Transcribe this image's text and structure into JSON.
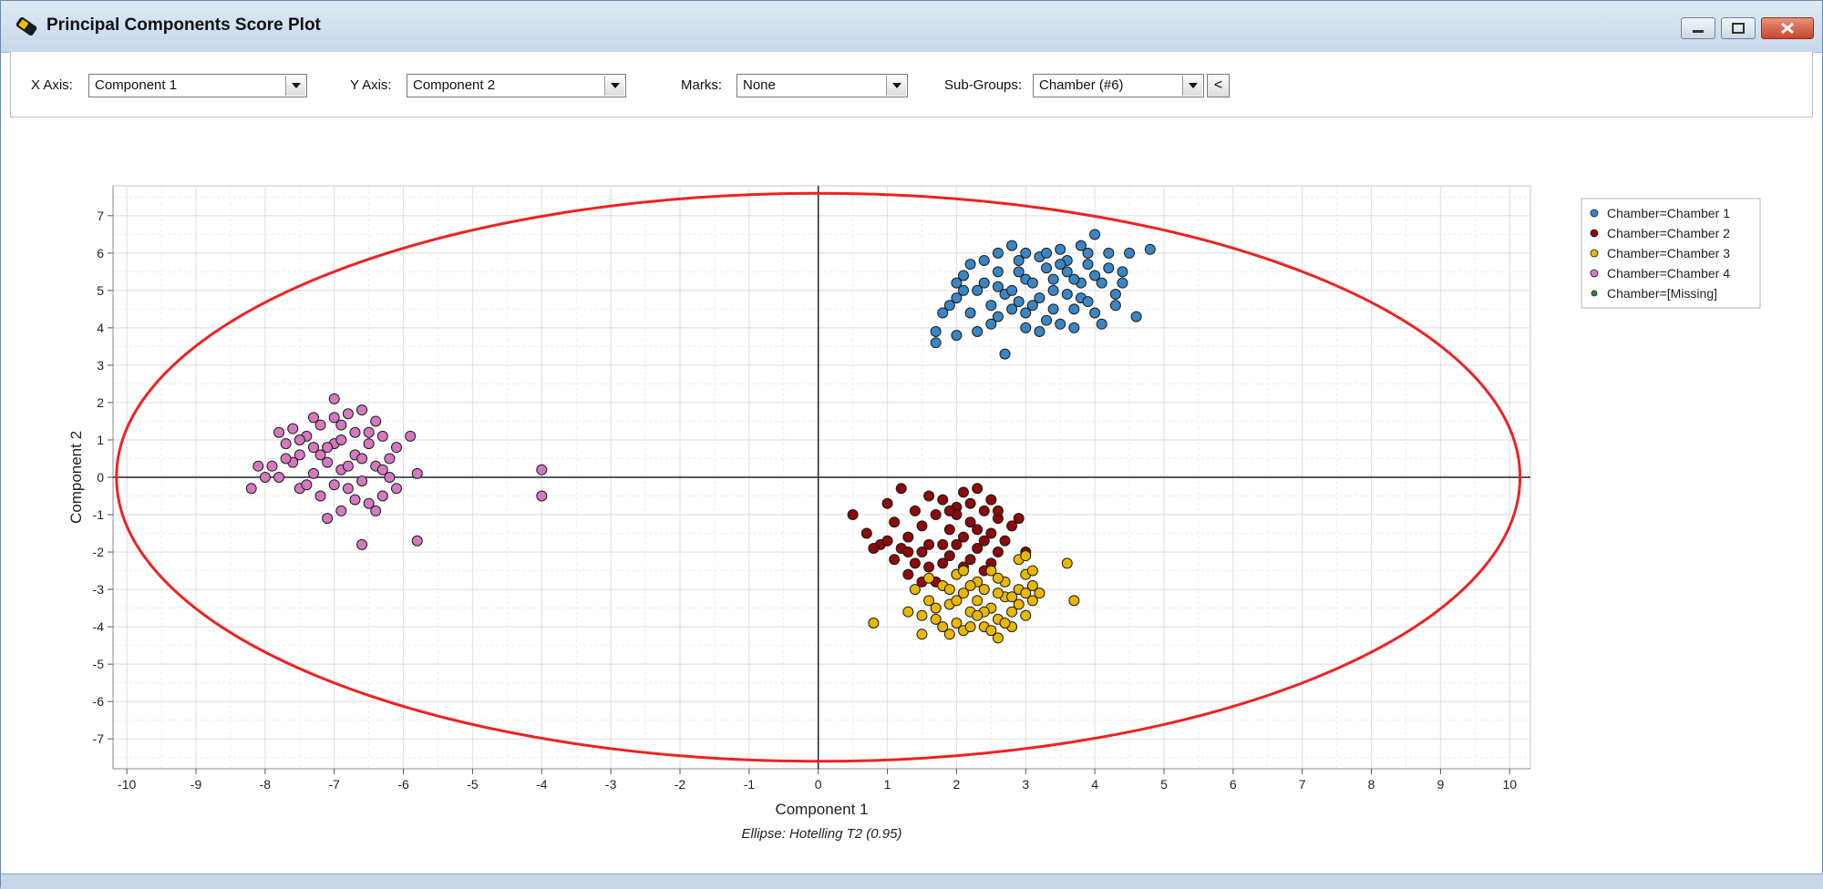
{
  "window": {
    "title": "Principal Components Score Plot",
    "icon": "app-icon"
  },
  "toolbar": {
    "x_axis_label": "X Axis:",
    "x_axis_value": "Component 1",
    "y_axis_label": "Y Axis:",
    "y_axis_value": "Component 2",
    "marks_label": "Marks:",
    "marks_value": "None",
    "subgroups_label": "Sub-Groups:",
    "subgroups_value": "Chamber (#6)",
    "collapse_label": "<"
  },
  "chart_data": {
    "type": "scatter",
    "xlabel": "Component 1",
    "ylabel": "Component 2",
    "caption": "Ellipse: Hotelling T2 (0.95)",
    "xlim": [
      -10.2,
      10.3
    ],
    "ylim": [
      -7.8,
      7.8
    ],
    "xticks": [
      -10,
      -9,
      -8,
      -7,
      -6,
      -5,
      -4,
      -3,
      -2,
      -1,
      0,
      1,
      2,
      3,
      4,
      5,
      6,
      7,
      8,
      9,
      10
    ],
    "yticks": [
      -7,
      -6,
      -5,
      -4,
      -3,
      -2,
      -1,
      0,
      1,
      2,
      3,
      4,
      5,
      6,
      7
    ],
    "grid": true,
    "legend_position": "top-right",
    "ellipse": {
      "center": [
        0,
        0
      ],
      "semi_x": 10.15,
      "semi_y": 7.6,
      "color": "#ee2222"
    },
    "colors": {
      "ellipse": "#ee2222",
      "axis_line": "#222222",
      "grid": "#e2e2e2"
    },
    "series": [
      {
        "name": "Chamber=Chamber 1",
        "color": "#3a86c4",
        "points": [
          [
            2.1,
            5.4
          ],
          [
            2.4,
            5.8
          ],
          [
            2.6,
            5.1
          ],
          [
            2.8,
            6.2
          ],
          [
            3.0,
            5.3
          ],
          [
            3.2,
            5.9
          ],
          [
            3.4,
            5.0
          ],
          [
            3.5,
            6.1
          ],
          [
            3.6,
            5.5
          ],
          [
            3.8,
            4.8
          ],
          [
            3.9,
            5.7
          ],
          [
            4.0,
            6.5
          ],
          [
            4.1,
            5.2
          ],
          [
            4.2,
            6.0
          ],
          [
            4.3,
            4.9
          ],
          [
            4.5,
            6.0
          ],
          [
            4.6,
            4.3
          ],
          [
            4.8,
            6.1
          ],
          [
            4.4,
            5.5
          ],
          [
            4.0,
            4.4
          ],
          [
            3.7,
            4.5
          ],
          [
            3.3,
            4.2
          ],
          [
            3.1,
            4.6
          ],
          [
            2.9,
            4.7
          ],
          [
            2.7,
            4.9
          ],
          [
            2.5,
            4.6
          ],
          [
            2.3,
            5.0
          ],
          [
            2.0,
            4.8
          ],
          [
            1.9,
            4.6
          ],
          [
            1.8,
            4.4
          ],
          [
            1.7,
            3.9
          ],
          [
            1.7,
            3.6
          ],
          [
            2.0,
            3.8
          ],
          [
            2.3,
            3.9
          ],
          [
            2.6,
            4.3
          ],
          [
            2.7,
            3.3
          ],
          [
            3.0,
            4.0
          ],
          [
            3.2,
            3.9
          ],
          [
            3.5,
            4.1
          ],
          [
            3.7,
            4.0
          ],
          [
            3.9,
            4.7
          ],
          [
            4.1,
            4.1
          ],
          [
            4.3,
            4.6
          ],
          [
            2.2,
            5.7
          ],
          [
            2.6,
            5.5
          ],
          [
            2.9,
            5.5
          ],
          [
            3.3,
            5.6
          ],
          [
            3.6,
            5.8
          ],
          [
            3.8,
            6.2
          ],
          [
            4.0,
            5.4
          ],
          [
            3.0,
            6.0
          ],
          [
            2.8,
            5.0
          ],
          [
            3.4,
            5.3
          ],
          [
            3.6,
            4.9
          ],
          [
            3.1,
            5.2
          ],
          [
            2.4,
            5.2
          ],
          [
            2.1,
            5.0
          ],
          [
            2.2,
            4.4
          ],
          [
            2.5,
            4.1
          ],
          [
            2.8,
            4.5
          ],
          [
            3.0,
            4.4
          ],
          [
            3.2,
            4.8
          ],
          [
            3.4,
            4.5
          ],
          [
            3.8,
            5.2
          ],
          [
            4.2,
            5.6
          ],
          [
            3.5,
            5.7
          ],
          [
            3.7,
            5.3
          ],
          [
            2.9,
            5.8
          ],
          [
            3.3,
            6.0
          ],
          [
            3.9,
            6.0
          ],
          [
            4.4,
            5.2
          ],
          [
            2.6,
            6.0
          ],
          [
            2.0,
            5.2
          ]
        ]
      },
      {
        "name": "Chamber=Chamber 2",
        "color": "#8b0a0a",
        "points": [
          [
            0.5,
            -1.0
          ],
          [
            0.7,
            -1.5
          ],
          [
            0.9,
            -1.8
          ],
          [
            1.0,
            -0.7
          ],
          [
            1.1,
            -1.2
          ],
          [
            1.1,
            -2.2
          ],
          [
            1.2,
            -0.3
          ],
          [
            1.3,
            -1.6
          ],
          [
            1.3,
            -2.6
          ],
          [
            1.4,
            -0.9
          ],
          [
            1.5,
            -2.0
          ],
          [
            1.5,
            -1.3
          ],
          [
            1.6,
            -0.5
          ],
          [
            1.6,
            -2.4
          ],
          [
            1.7,
            -1.0
          ],
          [
            1.8,
            -1.8
          ],
          [
            1.8,
            -0.6
          ],
          [
            1.9,
            -2.1
          ],
          [
            1.9,
            -1.4
          ],
          [
            2.0,
            -0.8
          ],
          [
            2.0,
            -2.6
          ],
          [
            2.1,
            -1.6
          ],
          [
            2.1,
            -0.4
          ],
          [
            2.2,
            -1.2
          ],
          [
            2.2,
            -2.2
          ],
          [
            2.3,
            -0.3
          ],
          [
            2.3,
            -1.9
          ],
          [
            2.4,
            -0.9
          ],
          [
            2.4,
            -2.5
          ],
          [
            2.5,
            -1.5
          ],
          [
            2.5,
            -0.6
          ],
          [
            2.6,
            -2.0
          ],
          [
            2.6,
            -1.1
          ],
          [
            2.7,
            -1.7
          ],
          [
            2.8,
            -1.3
          ],
          [
            2.9,
            -1.1
          ],
          [
            3.0,
            -2.0
          ],
          [
            1.2,
            -1.9
          ],
          [
            1.4,
            -2.3
          ],
          [
            1.7,
            -2.8
          ],
          [
            2.0,
            -1.0
          ],
          [
            2.3,
            -1.4
          ],
          [
            1.0,
            -1.7
          ],
          [
            0.8,
            -1.9
          ],
          [
            1.6,
            -1.8
          ],
          [
            1.9,
            -0.9
          ],
          [
            2.2,
            -0.7
          ],
          [
            2.4,
            -1.7
          ],
          [
            2.6,
            -0.9
          ],
          [
            2.1,
            -2.4
          ],
          [
            1.5,
            -2.8
          ],
          [
            1.3,
            -2.0
          ],
          [
            1.8,
            -2.3
          ],
          [
            2.0,
            -1.8
          ],
          [
            2.5,
            -2.3
          ]
        ]
      },
      {
        "name": "Chamber=Chamber 3",
        "color": "#e8b800",
        "points": [
          [
            0.8,
            -3.9
          ],
          [
            1.3,
            -3.6
          ],
          [
            1.4,
            -3.0
          ],
          [
            1.5,
            -4.2
          ],
          [
            1.6,
            -3.3
          ],
          [
            1.7,
            -3.8
          ],
          [
            1.8,
            -2.9
          ],
          [
            1.8,
            -4.0
          ],
          [
            1.9,
            -3.4
          ],
          [
            2.0,
            -2.6
          ],
          [
            2.0,
            -3.9
          ],
          [
            2.1,
            -3.1
          ],
          [
            2.1,
            -4.1
          ],
          [
            2.2,
            -3.6
          ],
          [
            2.3,
            -2.8
          ],
          [
            2.3,
            -3.3
          ],
          [
            2.4,
            -4.0
          ],
          [
            2.4,
            -3.0
          ],
          [
            2.5,
            -3.5
          ],
          [
            2.5,
            -2.5
          ],
          [
            2.6,
            -3.8
          ],
          [
            2.6,
            -4.3
          ],
          [
            2.7,
            -3.2
          ],
          [
            2.7,
            -2.8
          ],
          [
            2.8,
            -3.6
          ],
          [
            2.8,
            -4.0
          ],
          [
            2.9,
            -3.0
          ],
          [
            2.9,
            -3.4
          ],
          [
            3.0,
            -2.6
          ],
          [
            3.0,
            -3.7
          ],
          [
            3.1,
            -3.3
          ],
          [
            3.1,
            -2.9
          ],
          [
            3.2,
            -3.1
          ],
          [
            3.6,
            -2.3
          ],
          [
            3.7,
            -3.3
          ],
          [
            1.6,
            -2.7
          ],
          [
            1.9,
            -3.0
          ],
          [
            2.2,
            -2.9
          ],
          [
            2.4,
            -3.6
          ],
          [
            2.6,
            -3.1
          ],
          [
            2.8,
            -3.2
          ],
          [
            3.0,
            -3.1
          ],
          [
            2.0,
            -3.3
          ],
          [
            1.7,
            -3.5
          ],
          [
            2.2,
            -4.0
          ],
          [
            2.6,
            -2.7
          ],
          [
            2.9,
            -2.2
          ],
          [
            3.1,
            -2.5
          ],
          [
            1.5,
            -3.7
          ],
          [
            2.3,
            -3.7
          ],
          [
            2.7,
            -3.9
          ],
          [
            1.9,
            -4.2
          ],
          [
            2.1,
            -2.5
          ],
          [
            2.5,
            -4.1
          ],
          [
            3.0,
            -2.1
          ]
        ]
      },
      {
        "name": "Chamber=Chamber 4",
        "color": "#d479c0",
        "points": [
          [
            -8.2,
            -0.3
          ],
          [
            -8.1,
            0.3
          ],
          [
            -8.0,
            0.0
          ],
          [
            -7.9,
            0.3
          ],
          [
            -7.8,
            0.0
          ],
          [
            -7.7,
            0.9
          ],
          [
            -7.6,
            1.3
          ],
          [
            -7.5,
            0.6
          ],
          [
            -7.5,
            -0.3
          ],
          [
            -7.4,
            1.1
          ],
          [
            -7.3,
            0.1
          ],
          [
            -7.3,
            0.8
          ],
          [
            -7.2,
            1.4
          ],
          [
            -7.2,
            -0.5
          ],
          [
            -7.1,
            0.4
          ],
          [
            -7.1,
            -1.1
          ],
          [
            -7.0,
            1.6
          ],
          [
            -7.0,
            2.1
          ],
          [
            -7.0,
            0.9
          ],
          [
            -6.9,
            -0.9
          ],
          [
            -6.9,
            0.2
          ],
          [
            -6.8,
            1.7
          ],
          [
            -6.8,
            -0.3
          ],
          [
            -6.7,
            0.6
          ],
          [
            -6.7,
            1.2
          ],
          [
            -6.6,
            -0.1
          ],
          [
            -6.6,
            1.8
          ],
          [
            -6.5,
            0.9
          ],
          [
            -6.5,
            -0.7
          ],
          [
            -6.4,
            0.3
          ],
          [
            -6.4,
            1.5
          ],
          [
            -6.3,
            1.1
          ],
          [
            -6.3,
            -0.5
          ],
          [
            -6.2,
            0.5
          ],
          [
            -6.2,
            0.0
          ],
          [
            -6.1,
            0.8
          ],
          [
            -5.9,
            1.1
          ],
          [
            -5.8,
            0.1
          ],
          [
            -5.8,
            -1.7
          ],
          [
            -6.6,
            -1.8
          ],
          [
            -4.0,
            0.2
          ],
          [
            -4.0,
            -0.5
          ],
          [
            -7.6,
            0.4
          ],
          [
            -7.4,
            -0.2
          ],
          [
            -7.2,
            0.6
          ],
          [
            -6.9,
            1.0
          ],
          [
            -6.8,
            0.3
          ],
          [
            -6.6,
            0.5
          ],
          [
            -6.3,
            0.2
          ],
          [
            -7.0,
            -0.2
          ],
          [
            -7.8,
            1.2
          ],
          [
            -7.5,
            1.0
          ],
          [
            -6.7,
            -0.6
          ],
          [
            -6.1,
            -0.3
          ],
          [
            -6.4,
            -0.9
          ],
          [
            -7.3,
            1.6
          ],
          [
            -6.9,
            1.4
          ],
          [
            -6.5,
            1.2
          ],
          [
            -7.1,
            0.8
          ],
          [
            -7.7,
            0.5
          ]
        ]
      },
      {
        "name": "Chamber=[Missing]",
        "color": "#2a8a2a",
        "points": []
      }
    ]
  }
}
